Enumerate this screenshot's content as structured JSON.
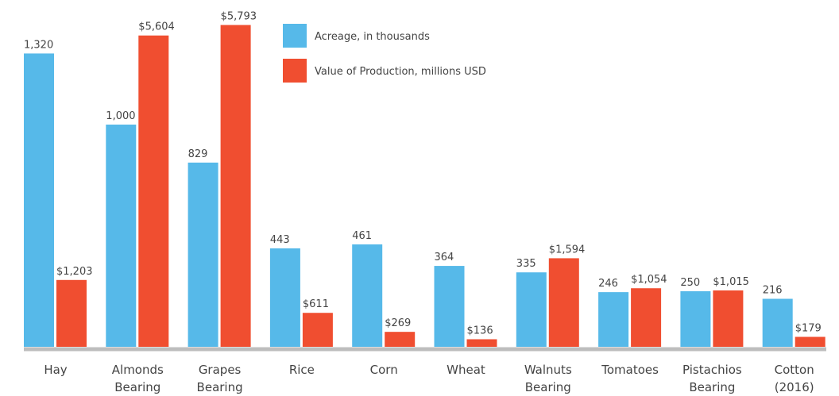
{
  "chart_data": {
    "type": "bar",
    "categories": [
      "Hay",
      "Almonds Bearing",
      "Grapes Bearing",
      "Rice",
      "Corn",
      "Wheat",
      "Walnuts Bearing",
      "Tomatoes",
      "Pistachios Bearing",
      "Cotton (2016)"
    ],
    "series": [
      {
        "name": "Acreage, in thousands",
        "color": "#56b9e9",
        "values": [
          1320,
          1000,
          829,
          443,
          461,
          364,
          335,
          246,
          250,
          216
        ],
        "value_labels": [
          "1,320",
          "1,000",
          "829",
          "443",
          "461",
          "364",
          "335",
          "246",
          "250",
          "216"
        ]
      },
      {
        "name": "Value of Production, millions USD",
        "color": "#f04e30",
        "axis": "y2",
        "values": [
          1203,
          5604,
          5793,
          611,
          269,
          136,
          1594,
          1054,
          1015,
          179
        ],
        "value_labels": [
          "$1,203",
          "$5,604",
          "$5,793",
          "$611",
          "$269",
          "$136",
          "$1,594",
          "$1,054",
          "$1,015",
          "$179"
        ]
      }
    ],
    "ylim": [
      0,
      1450
    ],
    "y2lim": [
      0,
      5800
    ]
  }
}
